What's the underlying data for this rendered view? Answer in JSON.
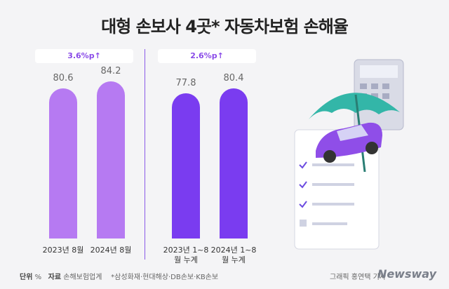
{
  "title": "대형 손보사 4곳* 자동차보험 손해율",
  "chart_data": [
    {
      "type": "bar",
      "annotation": "3.6%p↑",
      "categories": [
        "2023년 8월",
        "2024년 8월"
      ],
      "values": [
        80.6,
        84.2
      ],
      "color": "#b67af2"
    },
    {
      "type": "bar",
      "annotation": "2.6%p↑",
      "categories": [
        "2023년 1~8월 누계",
        "2024년 1~8월 누계"
      ],
      "values": [
        77.8,
        80.4
      ],
      "color": "#7a3cf0"
    }
  ],
  "footer": {
    "unit_label": "단위",
    "unit": "%",
    "source_label": "자료",
    "source": "손해보험업계",
    "note": "*삼성화재·현대해상·DB손보·KB손보",
    "credit": "그래픽 홍연택 기자",
    "brand": "Newsway"
  }
}
